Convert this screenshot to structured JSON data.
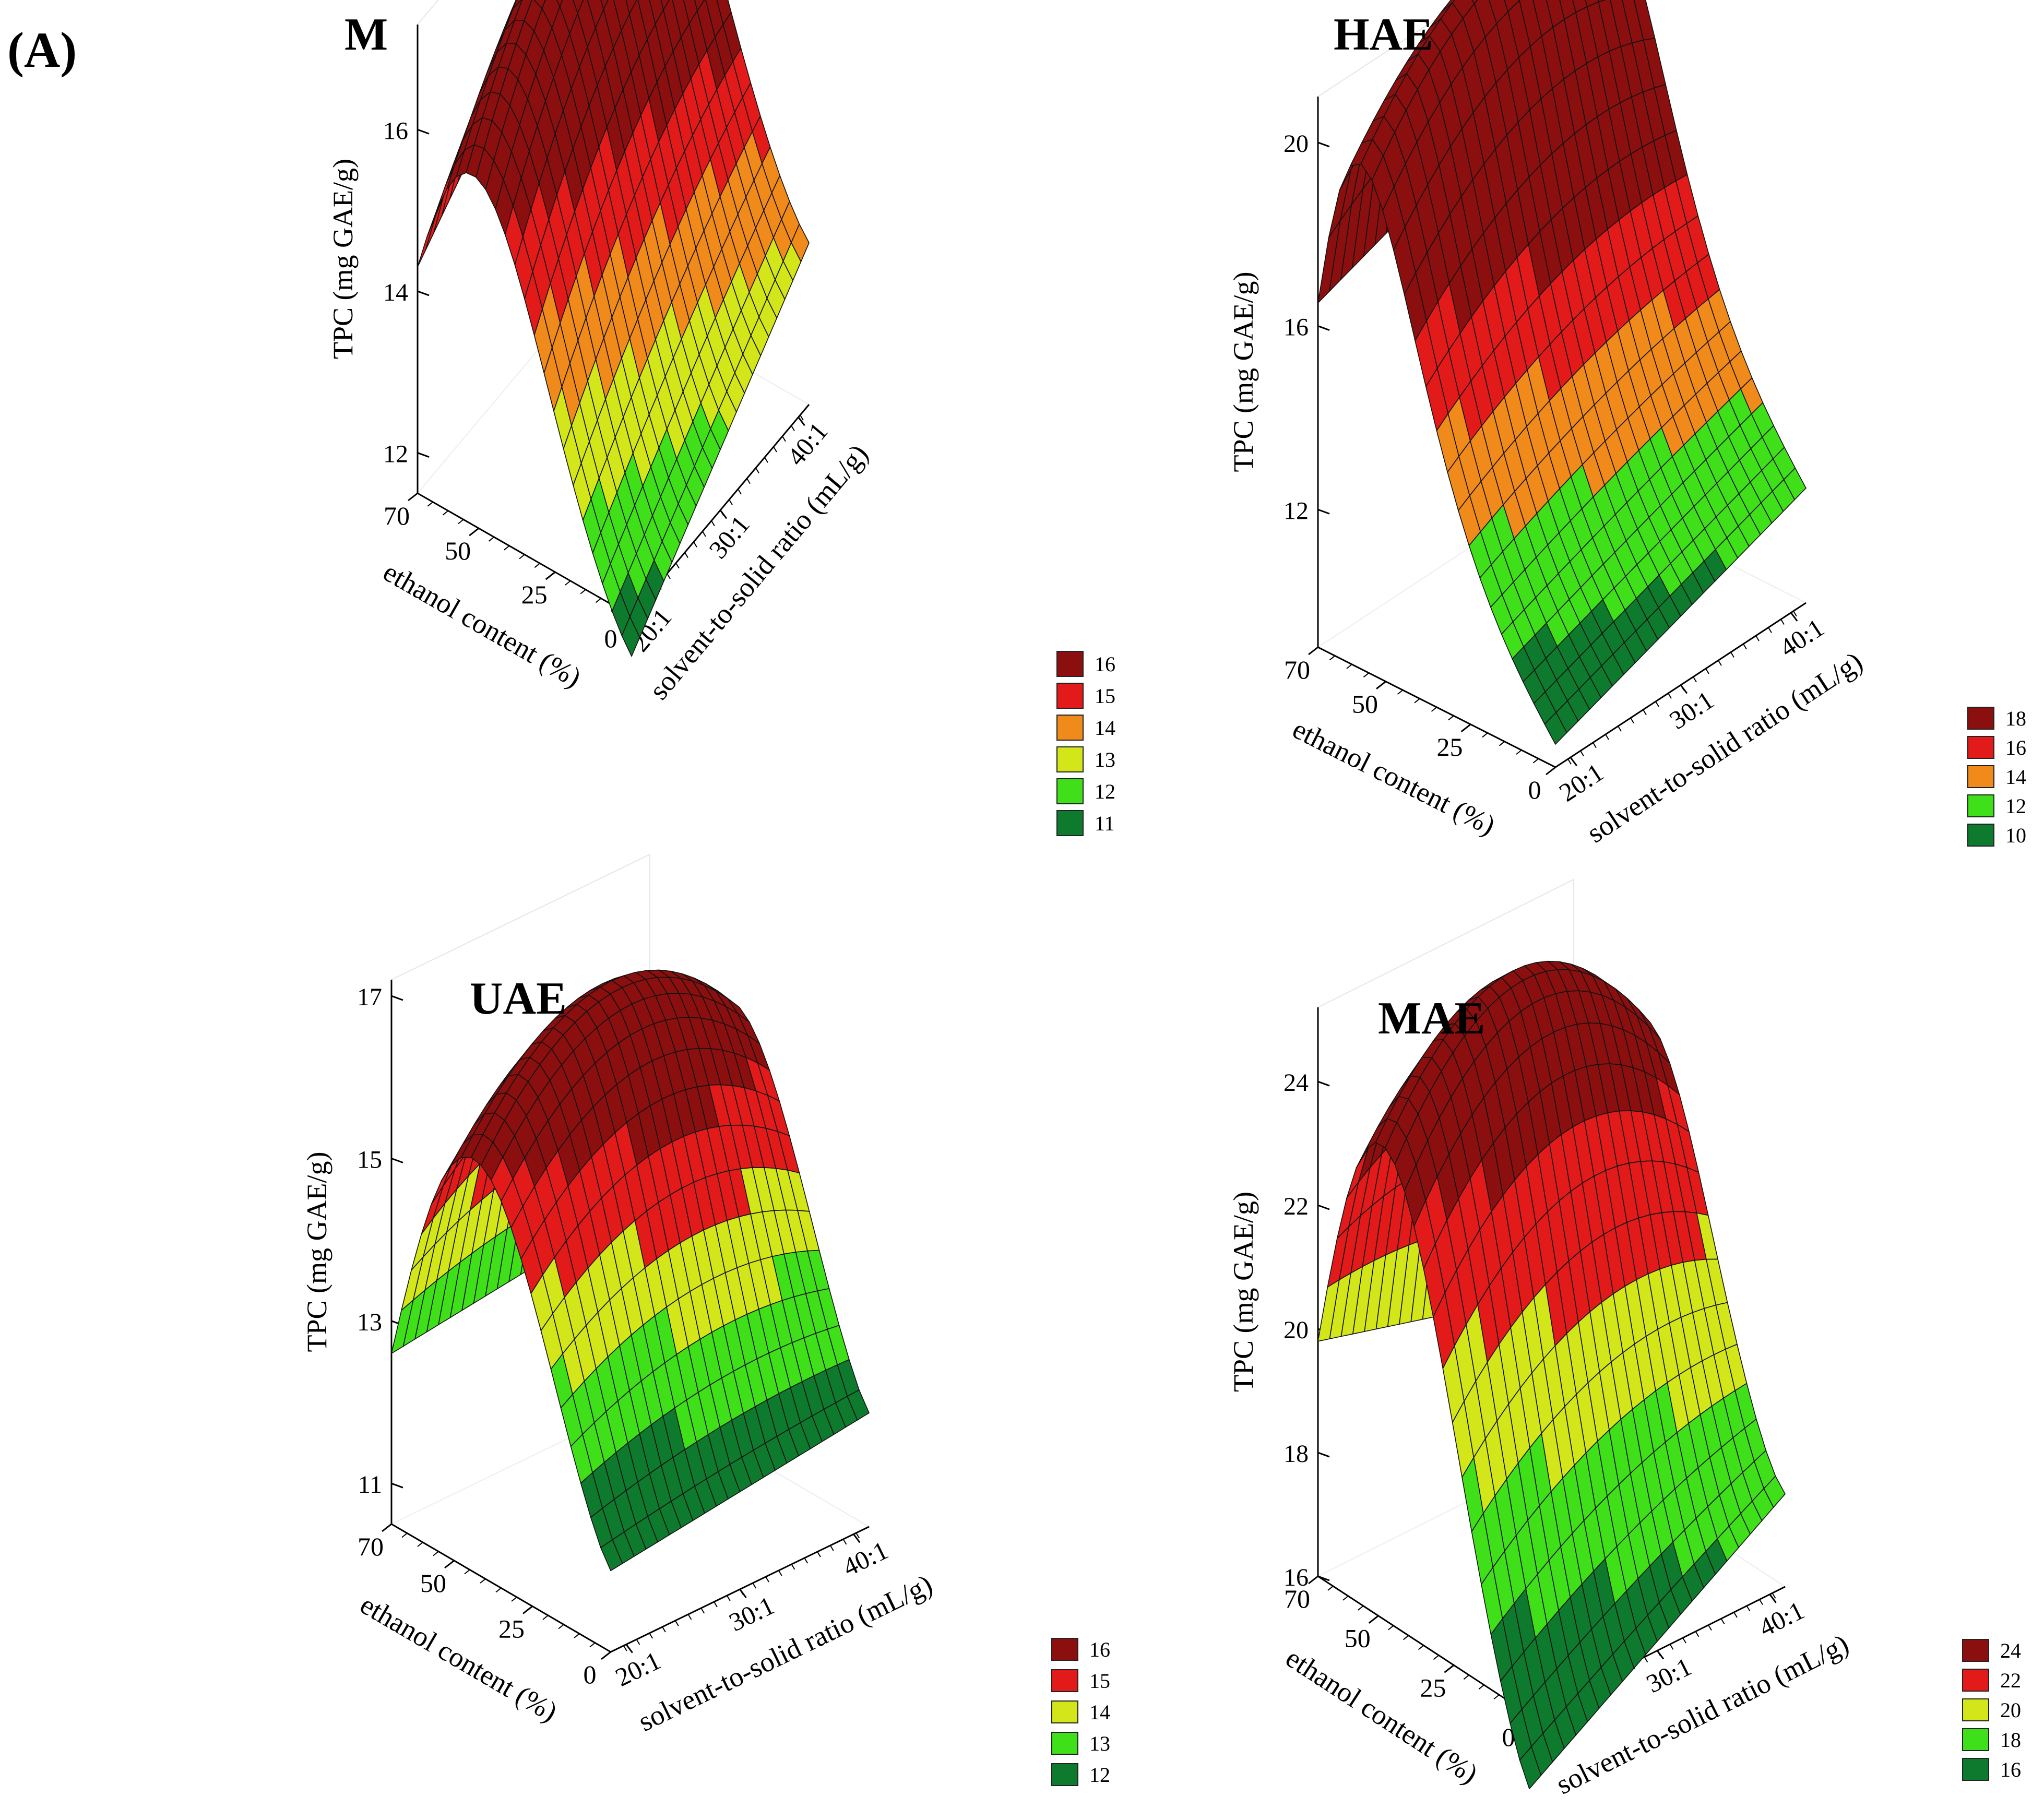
{
  "figure": {
    "label": "(A)",
    "colors": {
      "c5": "#8B0F0F",
      "c4": "#E31A1A",
      "c3": "#F08A1A",
      "c2": "#D2E61A",
      "c1": "#3FE01A",
      "c0": "#0E7A2E",
      "grid": "#000000"
    }
  },
  "chart_data": [
    {
      "type": "surface3d",
      "title": "M",
      "xlabel": "solvent-to-solid ratio (mL/g)",
      "ylabel": "ethanol content (%)",
      "zlabel": "TPC (mg GAE/g)",
      "x_ticks": [
        "20:1",
        "30:1",
        "40:1"
      ],
      "y_ticks": [
        "0",
        "25",
        "50",
        "70"
      ],
      "z_ticks": [
        "12",
        "14",
        "16"
      ],
      "zlim": [
        11.5,
        17.3
      ],
      "surface": {
        "x_range": [
          20,
          40
        ],
        "y_range": [
          0,
          70
        ],
        "z_at_corners": {
          "x20_y0": 11.0,
          "x20_y70": 14.3,
          "x40_y0": 13.5,
          "x40_y70": 16.3
        },
        "z_peak": 17.1,
        "peak_ethanol": 47
      },
      "legend": {
        "values": [
          "16",
          "15",
          "14",
          "13",
          "12",
          "11"
        ],
        "color_keys": [
          "c5",
          "c4",
          "c3",
          "c2",
          "c1",
          "c0"
        ]
      }
    },
    {
      "type": "surface3d",
      "title": "HAE",
      "xlabel": "solvent-to-solid ratio (mL/g)",
      "ylabel": "ethanol content (%)",
      "zlabel": "TPC (mg GAE/g)",
      "x_ticks": [
        "20:1",
        "30:1",
        "40:1"
      ],
      "y_ticks": [
        "0",
        "25",
        "50",
        "70"
      ],
      "z_ticks": [
        "12",
        "16",
        "20"
      ],
      "zlim": [
        9,
        21
      ],
      "surface": {
        "x_range": [
          20,
          40
        ],
        "y_range": [
          0,
          70
        ],
        "z_at_corners": {
          "x20_y0": 9.5,
          "x20_y70": 16.5,
          "x40_y0": 11.5,
          "x40_y70": 18.5
        },
        "z_peak": 20.5,
        "peak_ethanol": 55
      },
      "legend": {
        "values": [
          "18",
          "16",
          "14",
          "12",
          "10"
        ],
        "color_keys": [
          "c5",
          "c4",
          "c3",
          "c1",
          "c0"
        ]
      }
    },
    {
      "type": "surface3d",
      "title": "UAE",
      "xlabel": "solvent-to-solid ratio (mL/g)",
      "ylabel": "ethanol content (%)",
      "zlabel": "TPC (mg GAE/g)",
      "x_ticks": [
        "20:1",
        "30:1",
        "40:1"
      ],
      "y_ticks": [
        "0",
        "25",
        "50",
        "70"
      ],
      "z_ticks": [
        "11",
        "13",
        "15",
        "17"
      ],
      "zlim": [
        10.5,
        17.2
      ],
      "surface": {
        "x_range": [
          20,
          40
        ],
        "y_range": [
          0,
          70
        ],
        "z_at_corners": {
          "x20_y0": 11.5,
          "x20_y70": 12.6,
          "x40_y0": 11.9,
          "x40_y70": 13.0
        },
        "z_peak": 16.8,
        "peak_ethanol": 42
      },
      "legend": {
        "values": [
          "16",
          "15",
          "14",
          "13",
          "12"
        ],
        "color_keys": [
          "c5",
          "c4",
          "c2",
          "c1",
          "c0"
        ]
      }
    },
    {
      "type": "surface3d",
      "title": "MAE",
      "xlabel": "solvent-to-solid ratio (mL/g)",
      "ylabel": "ethanol content (%)",
      "zlabel": "TPC (mg GAE/g)",
      "x_ticks": [
        "20:1",
        "30:1",
        "40:1"
      ],
      "y_ticks": [
        "0",
        "25",
        "50",
        "70"
      ],
      "z_ticks": [
        "16",
        "18",
        "20",
        "22",
        "24"
      ],
      "zlim": [
        16,
        25.2
      ],
      "surface": {
        "x_range": [
          20,
          40
        ],
        "y_range": [
          0,
          70
        ],
        "z_at_corners": {
          "x20_y0": 14.8,
          "x20_y70": 19.8,
          "x40_y0": 17.5,
          "x40_y70": 18.6
        },
        "z_peak": 25.0,
        "peak_ethanol": 45
      },
      "legend": {
        "values": [
          "24",
          "22",
          "20",
          "18",
          "16"
        ],
        "color_keys": [
          "c5",
          "c4",
          "c2",
          "c1",
          "c0"
        ]
      }
    }
  ]
}
